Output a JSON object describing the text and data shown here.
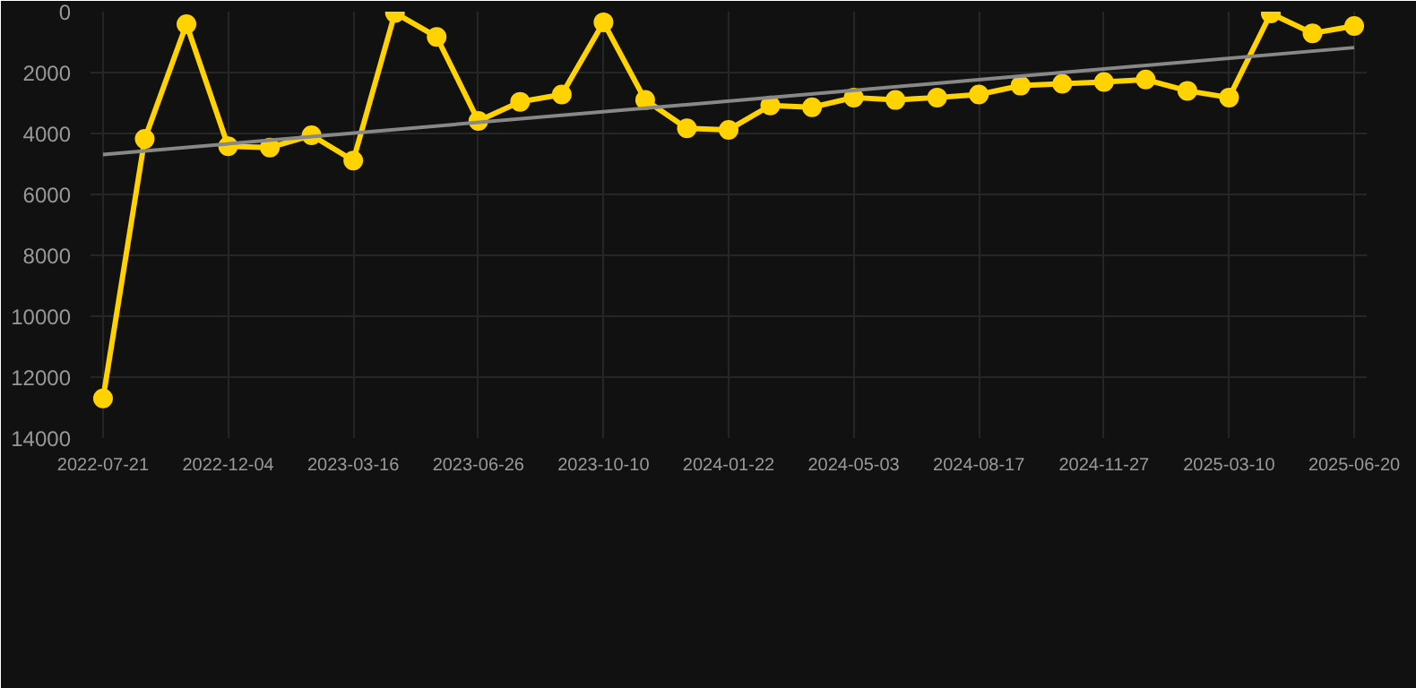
{
  "chart_data": {
    "type": "line",
    "categories": [
      "2022-07-21",
      null,
      null,
      "2022-12-04",
      null,
      null,
      "2023-03-16",
      null,
      null,
      "2023-06-26",
      null,
      null,
      "2023-10-10",
      null,
      null,
      "2024-01-22",
      null,
      null,
      "2024-05-03",
      null,
      null,
      "2024-08-17",
      null,
      null,
      "2024-11-27",
      null,
      null,
      "2025-03-10",
      null,
      null,
      "2025-06-20"
    ],
    "series": [
      {
        "color": "#ffd200",
        "marker": "circle",
        "values": [
          12700,
          4180,
          410,
          4420,
          4460,
          4060,
          4890,
          40,
          830,
          3590,
          2960,
          2720,
          350,
          2900,
          3830,
          3880,
          3080,
          3140,
          2820,
          2900,
          2820,
          2720,
          2430,
          2370,
          2310,
          2230,
          2600,
          2820,
          60,
          710,
          470
        ]
      },
      {
        "type": "line",
        "color": "#888888",
        "marker": "none",
        "values": [
          4690,
          null,
          null,
          null,
          null,
          null,
          null,
          null,
          null,
          null,
          null,
          null,
          null,
          null,
          null,
          null,
          null,
          null,
          null,
          null,
          null,
          null,
          null,
          null,
          null,
          null,
          null,
          null,
          null,
          null,
          1180
        ]
      }
    ],
    "ylim": [
      14000,
      0
    ],
    "yticks": [
      0,
      2000,
      4000,
      6000,
      8000,
      10000,
      12000,
      14000
    ],
    "grid": true
  }
}
